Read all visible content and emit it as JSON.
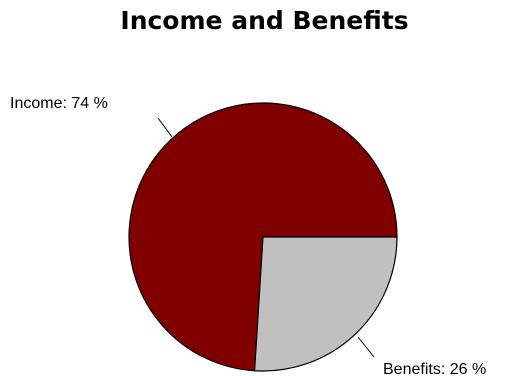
{
  "chart_data": {
    "type": "pie",
    "title": "Income and Benefits",
    "slices": [
      {
        "label": "Income",
        "value": 74,
        "display": "Income:  74 %",
        "color": "#800000"
      },
      {
        "label": "Benefits",
        "value": 26,
        "display": "Benefits:  26 %",
        "color": "#c0c0c0"
      }
    ],
    "legend": "none"
  }
}
